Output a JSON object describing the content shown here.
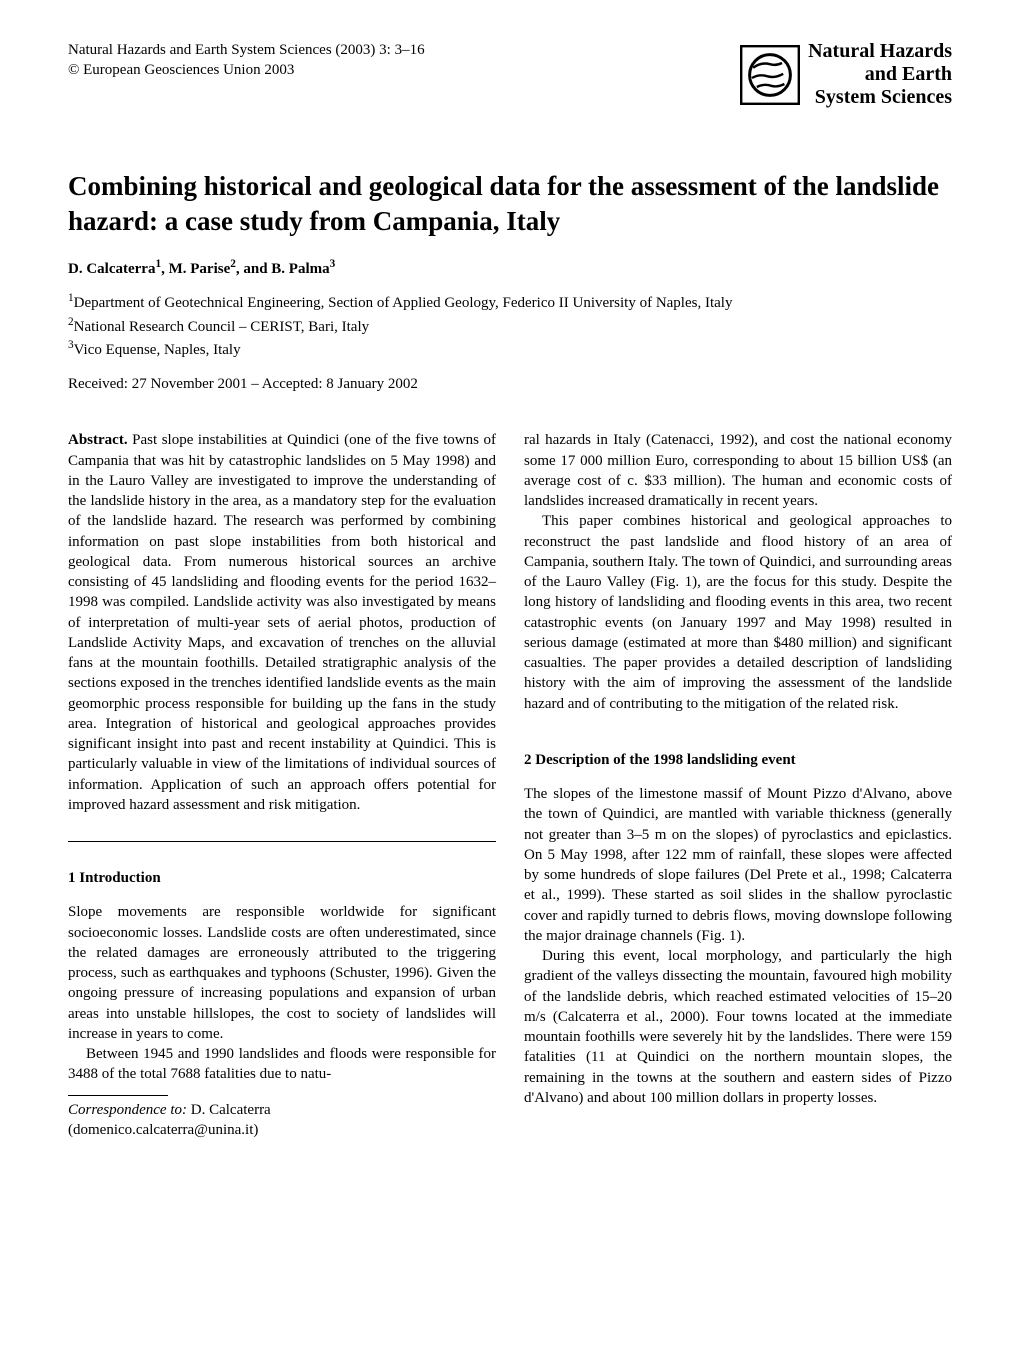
{
  "journal": {
    "citation": "Natural Hazards and Earth System Sciences (2003) 3: 3–16",
    "copyright": "© European Geosciences Union 2003",
    "logo_text_line1": "Natural Hazards",
    "logo_text_line2": "and Earth",
    "logo_text_line3": "System Sciences"
  },
  "title": "Combining historical and geological data for the assessment of the landslide hazard: a case study from Campania, Italy",
  "authors_html": "D. Calcaterra<sup>1</sup>, M. Parise<sup>2</sup>, and B. Palma<sup>3</sup>",
  "affiliations": [
    "<sup>1</sup>Department of Geotechnical Engineering, Section of Applied Geology, Federico II University of Naples, Italy",
    "<sup>2</sup>National Research Council – CERIST, Bari, Italy",
    "<sup>3</sup>Vico Equense, Naples, Italy"
  ],
  "dates": "Received: 27 November 2001 – Accepted: 8 January 2002",
  "abstract_label": "Abstract.",
  "abstract_text": " Past slope instabilities at Quindici (one of the five towns of Campania that was hit by catastrophic landslides on 5 May 1998) and in the Lauro Valley are investigated to improve the understanding of the landslide history in the area, as a mandatory step for the evaluation of the landslide hazard. The research was performed by combining information on past slope instabilities from both historical and geological data. From numerous historical sources an archive consisting of 45 landsliding and flooding events for the period 1632–1998 was compiled. Landslide activity was also investigated by means of interpretation of multi-year sets of aerial photos, production of Landslide Activity Maps, and excavation of trenches on the alluvial fans at the mountain foothills. Detailed stratigraphic analysis of the sections exposed in the trenches identified landslide events as the main geomorphic process responsible for building up the fans in the study area. Integration of historical and geological approaches provides significant insight into past and recent instability at Quindici. This is particularly valuable in view of the limitations of individual sources of information. Application of such an approach offers potential for improved hazard assessment and risk mitigation.",
  "left_col": {
    "section1_heading": "1   Introduction",
    "section1_p1": "Slope movements are responsible worldwide for significant socioeconomic losses. Landslide costs are often underestimated, since the related damages are erroneously attributed to the triggering process, such as earthquakes and typhoons (Schuster, 1996). Given the ongoing pressure of increasing populations and expansion of urban areas into unstable hillslopes, the cost to society of landslides will increase in years to come.",
    "section1_p2": "Between 1945 and 1990 landslides and floods were responsible for 3488 of the total 7688 fatalities due to natu-"
  },
  "right_col": {
    "continuation1": "ral hazards in Italy (Catenacci, 1992), and cost the national economy some 17 000 million Euro, corresponding to about 15 billion US$ (an average cost of c. $33 million). The human and economic costs of landslides increased dramatically in recent years.",
    "continuation2": "This paper combines historical and geological approaches to reconstruct the past landslide and flood history of an area of Campania, southern Italy. The town of Quindici, and surrounding areas of the Lauro Valley (Fig. 1), are the focus for this study. Despite the long history of landsliding and flooding events in this area, two recent catastrophic events (on January 1997 and May 1998) resulted in serious damage (estimated at more than $480 million) and significant casualties. The paper provides a detailed description of landsliding history with the aim of improving the assessment of the landslide hazard and of contributing to the mitigation of the related risk.",
    "section2_heading": "2   Description of the 1998 landsliding event",
    "section2_p1": "The slopes of the limestone massif of Mount Pizzo d'Alvano, above the town of Quindici, are mantled with variable thickness (generally not greater than 3–5 m on the slopes) of pyroclastics and epiclastics. On 5 May 1998, after 122 mm of rainfall, these slopes were affected by some hundreds of slope failures (Del Prete et al., 1998; Calcaterra et al., 1999). These started as soil slides in the shallow pyroclastic cover and rapidly turned to debris flows, moving downslope following the major drainage channels (Fig. 1).",
    "section2_p2": "During this event, local morphology, and particularly the high gradient of the valleys dissecting the mountain, favoured high mobility of the landslide debris, which reached estimated velocities of 15–20 m/s (Calcaterra et al., 2000). Four towns located at the immediate mountain foothills were severely hit by the landslides. There were 159 fatalities (11 at Quindici on the northern mountain slopes, the remaining in the towns at the southern and eastern sides of Pizzo d'Alvano) and about 100 million dollars in property losses."
  },
  "correspondence": {
    "label": "Correspondence to:",
    "name": " D. Calcaterra",
    "email": "(domenico.calcaterra@unina.it)"
  }
}
